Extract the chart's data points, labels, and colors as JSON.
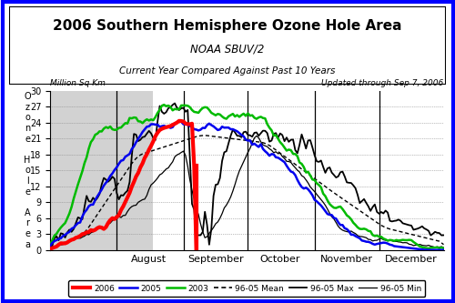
{
  "title": "2006 Southern Hemisphere Ozone Hole Area",
  "subtitle1": "NOAA SBUV/2",
  "subtitle2": "Current Year Compared Against Past 10 Years",
  "annotation_left": "Million Sq Km",
  "annotation_right": "Updated through Sep 7, 2006",
  "ylabel": "O\nz\no\nn\ne\n \nH\no\nl\ne\n \nA\nr\ne\na",
  "ylim": [
    0,
    30
  ],
  "yticks": [
    0,
    3,
    6,
    9,
    12,
    15,
    18,
    21,
    24,
    27,
    30
  ],
  "background_color": "#ffffff"
}
